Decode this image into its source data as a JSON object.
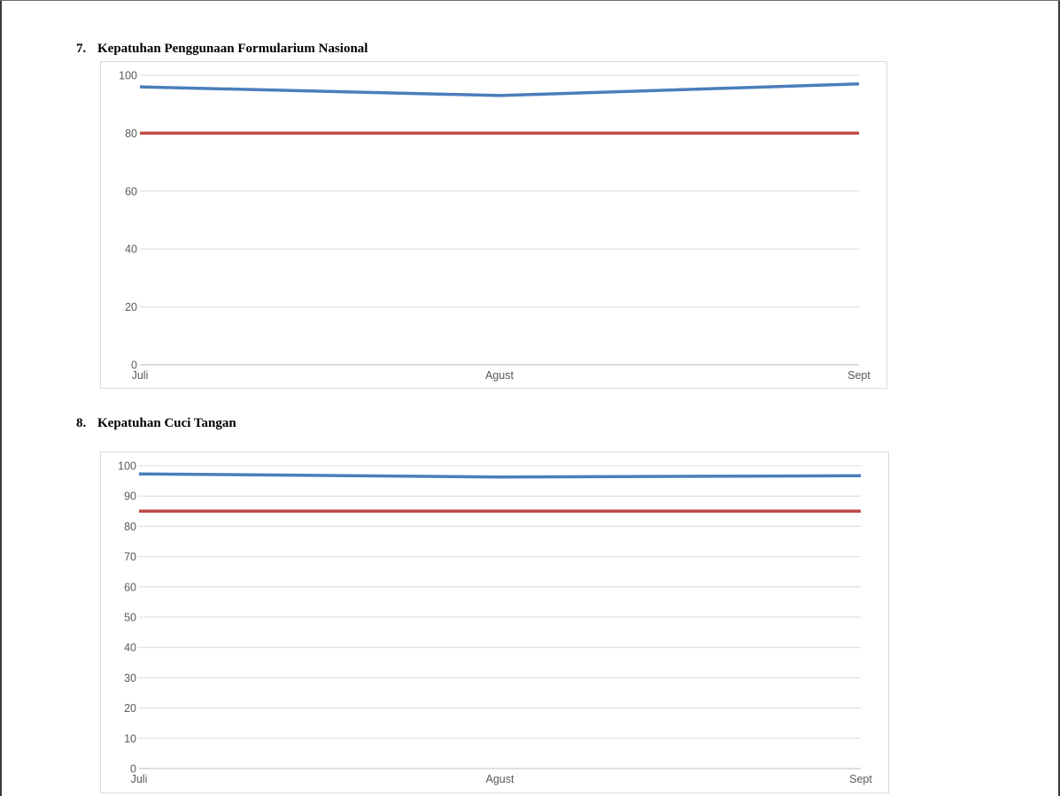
{
  "sections": [
    {
      "number": "7.",
      "title": "Kepatuhan Penggunaan Formularium Nasional"
    },
    {
      "number": "8.",
      "title": "Kepatuhan Cuci Tangan"
    }
  ],
  "chart_data": [
    {
      "type": "line",
      "categories": [
        "Juli",
        "Agust",
        "Sept"
      ],
      "series": [
        {
          "values": [
            96,
            93,
            97
          ],
          "color": "#4a7ebb"
        },
        {
          "values": [
            80,
            80,
            80
          ],
          "color": "#be4b48"
        }
      ],
      "ylim": [
        0,
        100
      ],
      "yticks": [
        0,
        20,
        40,
        60,
        80,
        100
      ],
      "grid": true,
      "legend": "none"
    },
    {
      "type": "line",
      "categories": [
        "Juli",
        "Agust",
        "Sept"
      ],
      "series": [
        {
          "values": [
            97.3,
            96.3,
            96.7
          ],
          "color": "#4a7ebb"
        },
        {
          "values": [
            85,
            85,
            85
          ],
          "color": "#be4b48"
        }
      ],
      "ylim": [
        0,
        100
      ],
      "yticks": [
        0,
        10,
        20,
        30,
        40,
        50,
        60,
        70,
        80,
        90,
        100
      ],
      "grid": true,
      "legend": "none"
    }
  ]
}
